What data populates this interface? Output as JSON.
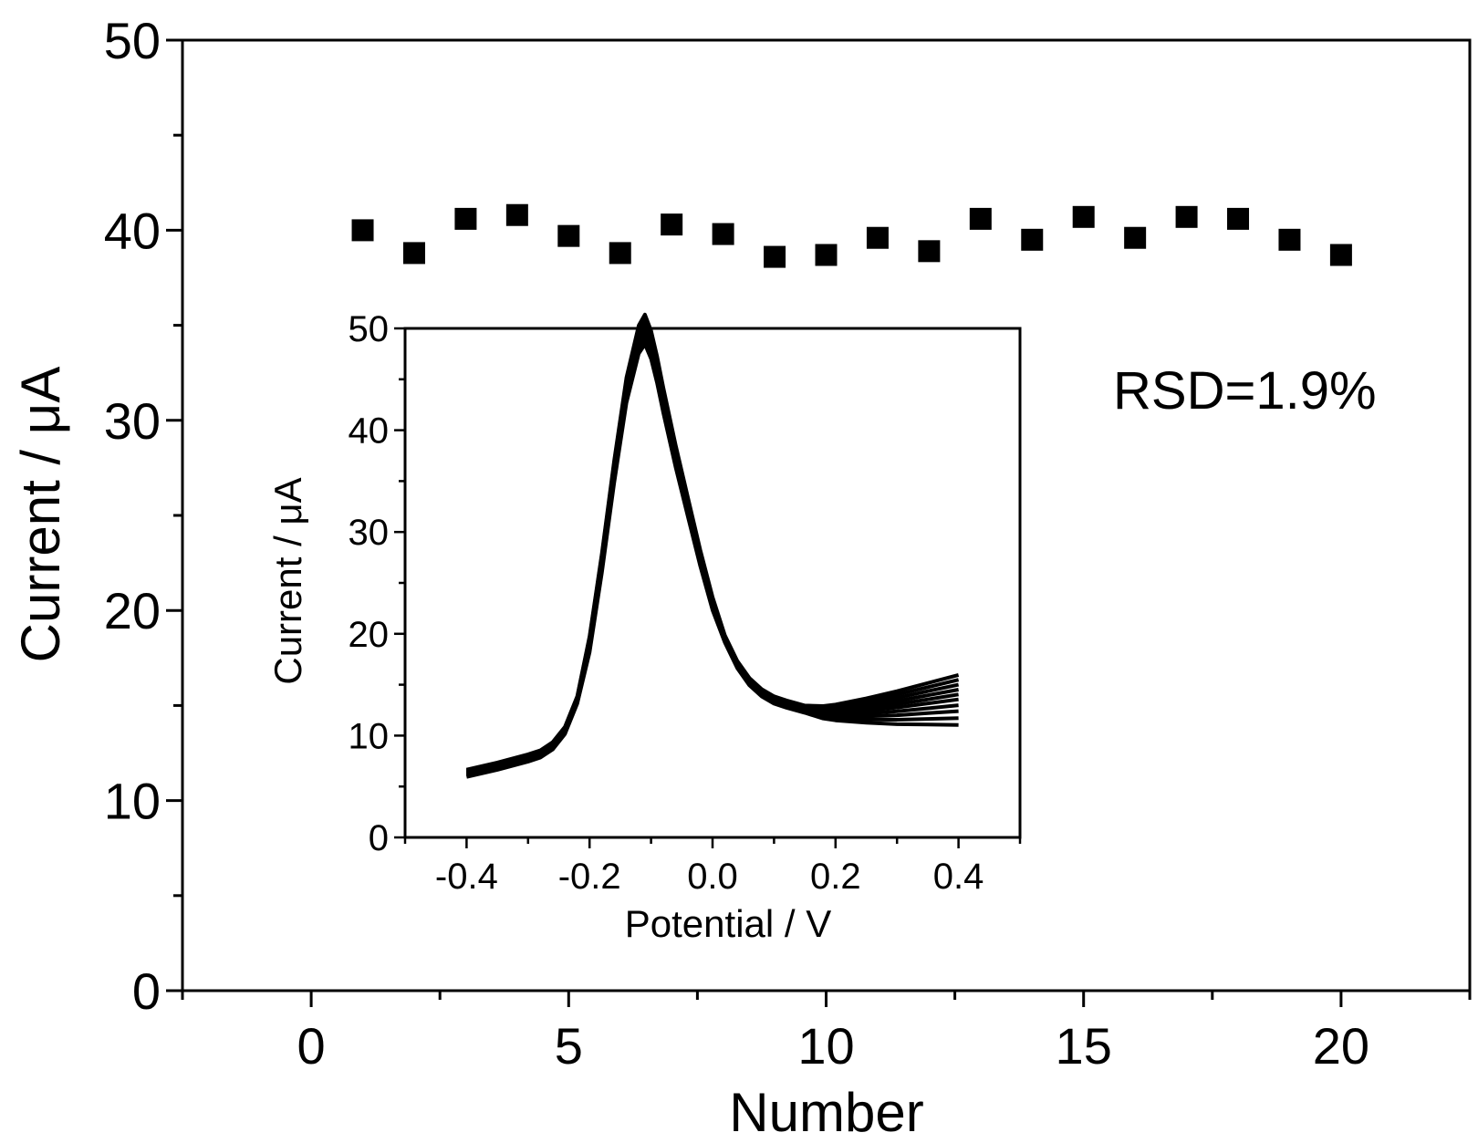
{
  "chart_data": [
    {
      "type": "scatter",
      "marker": "filled-square",
      "color": "#000000",
      "xlabel": "Number",
      "ylabel": "Current / μA",
      "xlim": [
        -2.5,
        22.5
      ],
      "ylim": [
        0,
        50
      ],
      "xticks": [
        0,
        5,
        10,
        15,
        20
      ],
      "xtick_labels": [
        "0",
        "5",
        "10",
        "15",
        "20"
      ],
      "yticks": [
        0,
        10,
        20,
        30,
        40,
        50
      ],
      "ytick_labels": [
        "0",
        "10",
        "20",
        "30",
        "40",
        "50"
      ],
      "x": [
        1,
        2,
        3,
        4,
        5,
        6,
        7,
        8,
        9,
        10,
        11,
        12,
        13,
        14,
        15,
        16,
        17,
        18,
        19,
        20
      ],
      "y": [
        40.0,
        38.8,
        40.6,
        40.8,
        39.7,
        38.8,
        40.3,
        39.8,
        38.6,
        38.7,
        39.6,
        38.9,
        40.6,
        39.5,
        40.7,
        39.6,
        40.7,
        40.6,
        39.5,
        38.7
      ],
      "annotation": "RSD=1.9%",
      "grid": false
    },
    {
      "type": "line",
      "inset": true,
      "color": "#000000",
      "xlabel": "Potential / V",
      "ylabel": "Current / μA",
      "xlim": [
        -0.5,
        0.5
      ],
      "ylim": [
        0,
        50
      ],
      "xticks": [
        -0.4,
        -0.2,
        0.0,
        0.2,
        0.4
      ],
      "xtick_labels": [
        "-0.4",
        "-0.2",
        "0.0",
        "0.2",
        "0.4"
      ],
      "yticks": [
        0,
        10,
        20,
        30,
        40,
        50
      ],
      "ytick_labels": [
        "0",
        "10",
        "20",
        "30",
        "40",
        "50"
      ],
      "base_curve": {
        "x": [
          -0.4,
          -0.35,
          -0.3,
          -0.28,
          -0.26,
          -0.24,
          -0.22,
          -0.2,
          -0.18,
          -0.16,
          -0.14,
          -0.12,
          -0.11,
          -0.1,
          -0.09,
          -0.08,
          -0.06,
          -0.04,
          -0.02,
          0.0,
          0.02,
          0.04,
          0.06,
          0.08,
          0.1,
          0.12,
          0.15,
          0.18,
          0.2,
          0.25,
          0.3,
          0.35,
          0.4
        ],
        "y": [
          6.3,
          7.0,
          7.8,
          8.2,
          9.0,
          10.5,
          13.5,
          19.0,
          27.0,
          36.0,
          44.0,
          49.0,
          50.0,
          48.5,
          46.0,
          43.0,
          37.5,
          32.5,
          27.5,
          23.0,
          19.5,
          17.0,
          15.3,
          14.2,
          13.5,
          13.1,
          12.6,
          12.3,
          12.3,
          12.5,
          12.8,
          13.2,
          13.6
        ]
      },
      "series_offsets_tail": [
        -2.2,
        -1.6,
        -1.0,
        -0.5,
        0.0,
        0.4,
        0.8,
        1.2,
        1.6,
        2.0
      ],
      "series_offsets_peak": [
        -1.2,
        -0.9,
        -0.6,
        -0.3,
        0.0,
        0.2,
        0.4,
        0.6,
        0.8,
        1.0
      ]
    }
  ]
}
